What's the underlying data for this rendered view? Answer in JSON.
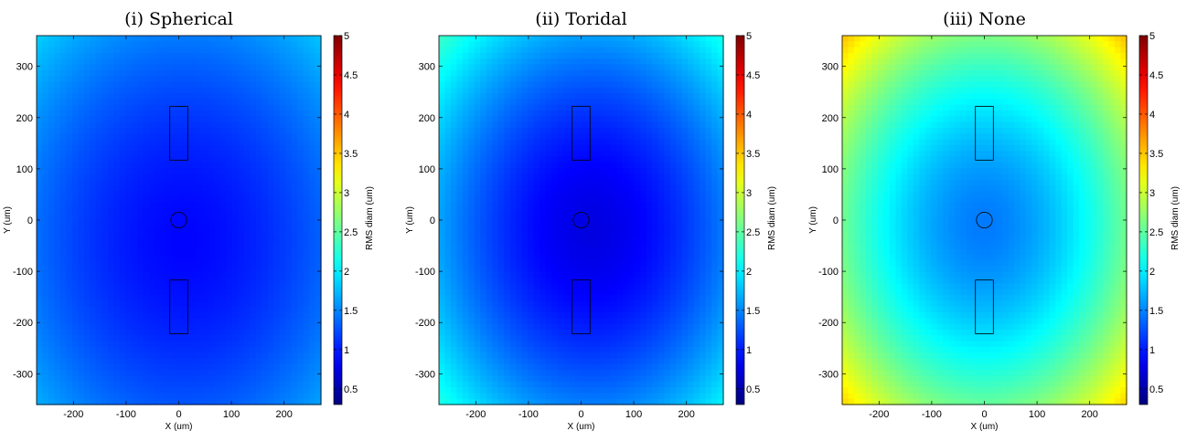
{
  "chart_data": [
    {
      "type": "heatmap",
      "title": "(i) Spherical",
      "xlabel": "X (um)",
      "ylabel": "Y (um)",
      "colorbar_label": "RMS diam (um)",
      "xlim": [
        -270,
        270
      ],
      "ylim": [
        -360,
        360
      ],
      "clim": [
        0.3,
        5
      ],
      "x_ticks": [
        -200,
        -100,
        0,
        100,
        200
      ],
      "y_ticks": [
        300,
        200,
        100,
        0,
        -100,
        -200,
        -300
      ],
      "colorbar_ticks": [
        5,
        4.5,
        4,
        3.5,
        3,
        2.5,
        2,
        1.5,
        1,
        0.5
      ],
      "field_model": {
        "min_value": 0.9,
        "min_center": [
          10,
          -40
        ],
        "corner_value": 1.85
      },
      "overlays": [
        {
          "shape": "rectangle",
          "x": [
            -17,
            17
          ],
          "y": [
            117,
            222
          ]
        },
        {
          "shape": "rectangle",
          "x": [
            -17,
            17
          ],
          "y": [
            -222,
            -117
          ]
        },
        {
          "shape": "circle",
          "center": [
            0,
            0
          ],
          "radius": 15
        }
      ]
    },
    {
      "type": "heatmap",
      "title": "(ii) Toridal",
      "xlabel": "X (um)",
      "ylabel": "Y (um)",
      "colorbar_label": "RMS diam (um)",
      "xlim": [
        -270,
        270
      ],
      "ylim": [
        -360,
        360
      ],
      "clim": [
        0.3,
        5
      ],
      "x_ticks": [
        -200,
        -100,
        0,
        100,
        200
      ],
      "y_ticks": [
        300,
        200,
        100,
        0,
        -100,
        -200,
        -300
      ],
      "colorbar_ticks": [
        5,
        4.5,
        4,
        3.5,
        3,
        2.5,
        2,
        1.5,
        1,
        0.5
      ],
      "field_model": {
        "min_value": 0.75,
        "min_center": [
          20,
          -20
        ],
        "corner_value": 2.35
      },
      "overlays": [
        {
          "shape": "rectangle",
          "x": [
            -17,
            17
          ],
          "y": [
            117,
            222
          ]
        },
        {
          "shape": "rectangle",
          "x": [
            -17,
            17
          ],
          "y": [
            -222,
            -117
          ]
        },
        {
          "shape": "circle",
          "center": [
            0,
            0
          ],
          "radius": 15
        }
      ]
    },
    {
      "type": "heatmap",
      "title": "(iii) None",
      "xlabel": "X (um)",
      "ylabel": "Y (um)",
      "colorbar_label": "RMS diam (um)",
      "xlim": [
        -270,
        270
      ],
      "ylim": [
        -360,
        360
      ],
      "clim": [
        0.3,
        5
      ],
      "x_ticks": [
        -200,
        -100,
        0,
        100,
        200
      ],
      "y_ticks": [
        300,
        200,
        100,
        0,
        -100,
        -200,
        -300
      ],
      "colorbar_ticks": [
        5,
        4.5,
        4,
        3.5,
        3,
        2.5,
        2,
        1.5,
        1,
        0.5
      ],
      "field_model": {
        "min_value": 1.45,
        "min_center": [
          0,
          -10
        ],
        "corner_value": 3.55
      },
      "overlays": [
        {
          "shape": "rectangle",
          "x": [
            -17,
            17
          ],
          "y": [
            117,
            222
          ]
        },
        {
          "shape": "rectangle",
          "x": [
            -17,
            17
          ],
          "y": [
            -222,
            -117
          ]
        },
        {
          "shape": "circle",
          "center": [
            0,
            0
          ],
          "radius": 15
        }
      ]
    }
  ]
}
